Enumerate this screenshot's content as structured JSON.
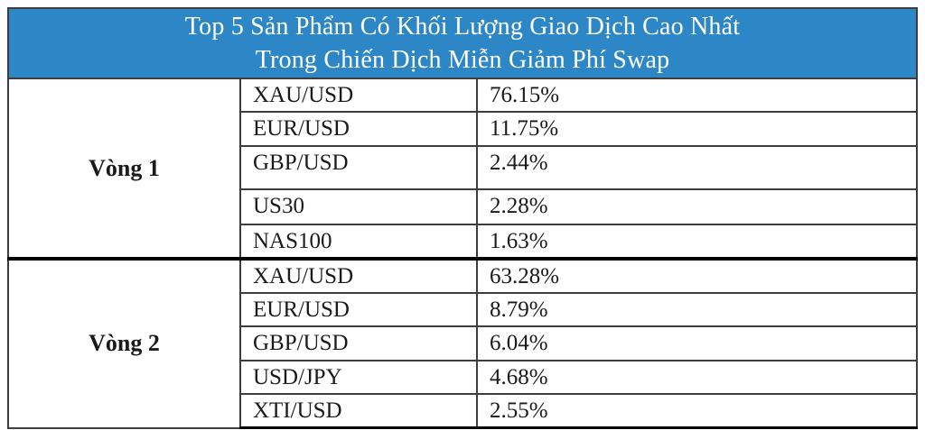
{
  "title": {
    "line1": "Top 5 Sản Phẩm Có Khối Lượng Giao Dịch Cao Nhất",
    "line2": "Trong Chiến Dịch Miễn Giảm Phí Swap"
  },
  "colors": {
    "header_bg": "#2D87C6",
    "header_text": "#FFFFFF",
    "body_text": "#1A1A1A",
    "border_thin": "#3D3D3D",
    "border_thick": "#000000"
  },
  "sections": [
    {
      "label": "Vòng 1",
      "rows": [
        {
          "product": "XAU/USD",
          "percent": "76.15%"
        },
        {
          "product": "EUR/USD",
          "percent": "11.75%"
        },
        {
          "product": "GBP/USD",
          "percent": "2.44%"
        },
        {
          "product": "US30",
          "percent": "2.28%"
        },
        {
          "product": "NAS100",
          "percent": "1.63%"
        }
      ]
    },
    {
      "label": "Vòng 2",
      "rows": [
        {
          "product": "XAU/USD",
          "percent": "63.28%"
        },
        {
          "product": "EUR/USD",
          "percent": "8.79%"
        },
        {
          "product": "GBP/USD",
          "percent": "6.04%"
        },
        {
          "product": "USD/JPY",
          "percent": "4.68%"
        },
        {
          "product": "XTI/USD",
          "percent": "2.55%"
        }
      ]
    }
  ],
  "chart_data": {
    "type": "table",
    "title": "Top 5 Sản Phẩm Có Khối Lượng Giao Dịch Cao Nhất Trong Chiến Dịch Miễn Giảm Phí Swap",
    "series": [
      {
        "name": "Vòng 1",
        "categories": [
          "XAU/USD",
          "EUR/USD",
          "GBP/USD",
          "US30",
          "NAS100"
        ],
        "values_percent": [
          76.15,
          11.75,
          2.44,
          2.28,
          1.63
        ]
      },
      {
        "name": "Vòng 2",
        "categories": [
          "XAU/USD",
          "EUR/USD",
          "GBP/USD",
          "USD/JPY",
          "XTI/USD"
        ],
        "values_percent": [
          63.28,
          8.79,
          6.04,
          4.68,
          2.55
        ]
      }
    ],
    "layout": "two row-groups sharing columns: round label (merged), product, volume share percent"
  }
}
